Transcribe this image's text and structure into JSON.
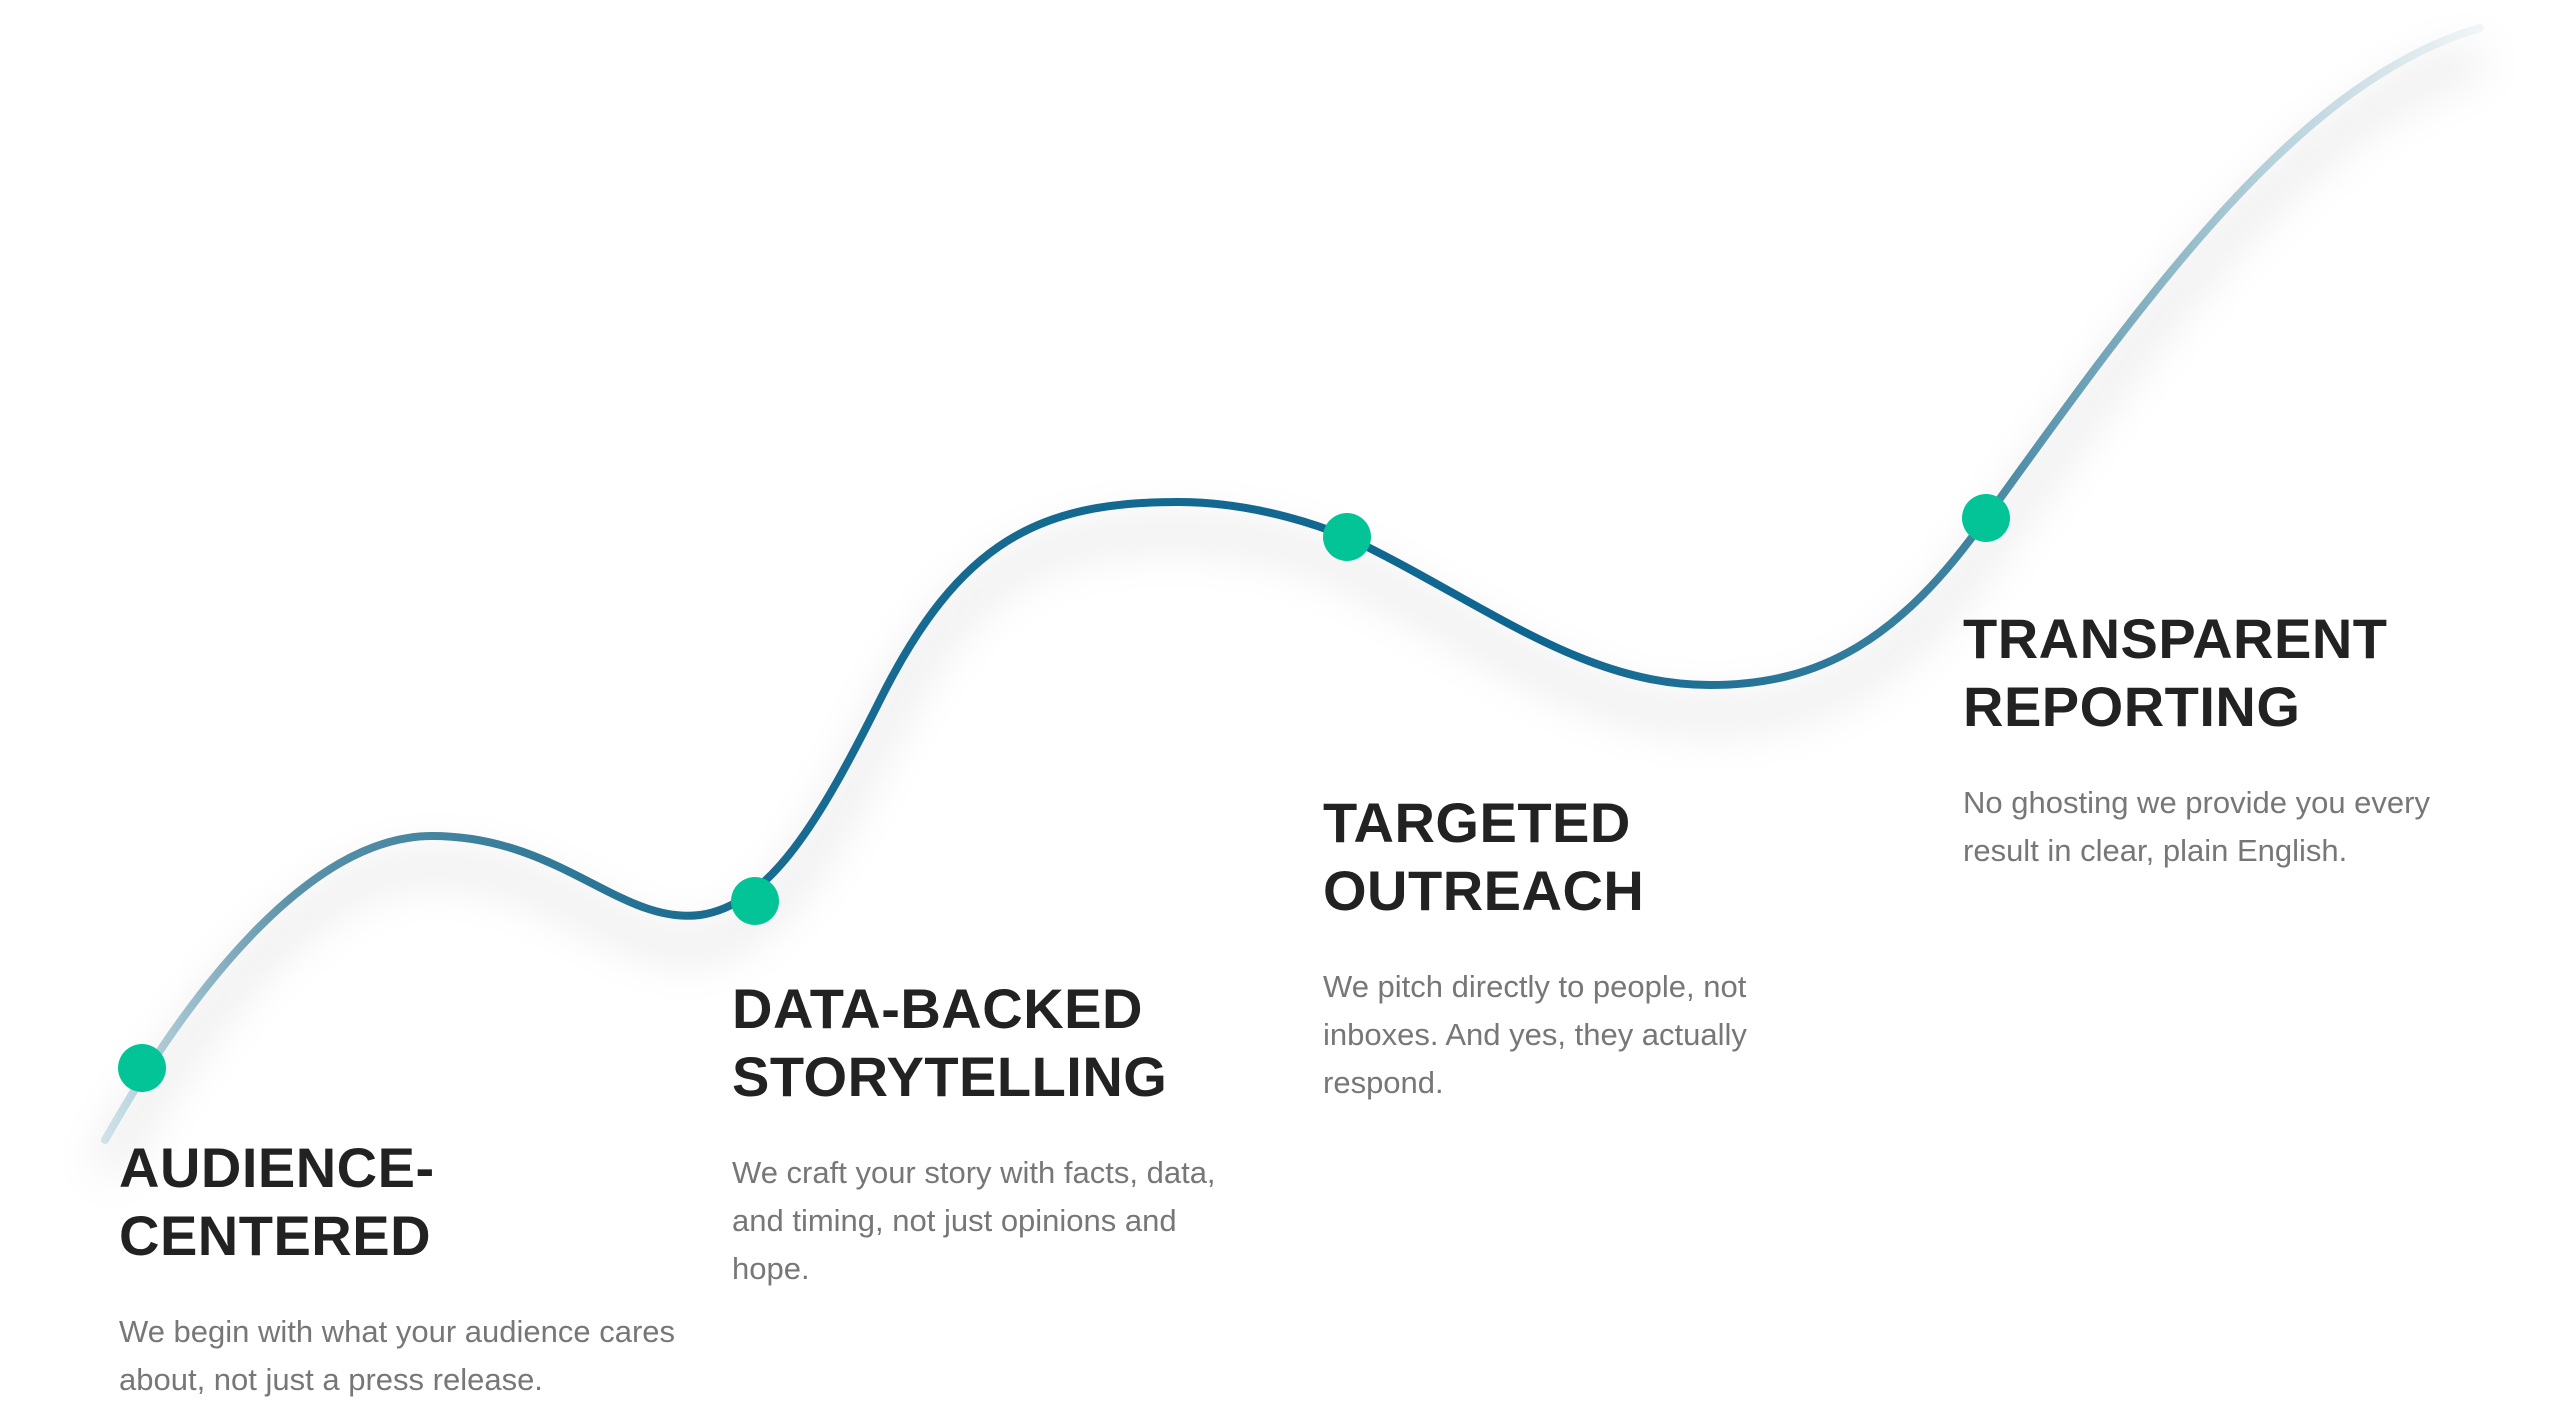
{
  "colors": {
    "curve_dark": "#0e6690",
    "curve_light": "#c5dde4",
    "dot": "#03c497",
    "title": "#222222",
    "body": "#777777"
  },
  "steps": [
    {
      "title_line1": "AUDIENCE-",
      "title_line2": "CENTERED",
      "text": "We begin with what your audience cares about, not just a press release."
    },
    {
      "title_line1": "DATA-BACKED",
      "title_line2": "STORYTELLING",
      "text": "We craft your story with facts, data, and timing, not just opinions and hope."
    },
    {
      "title_line1": "TARGETED",
      "title_line2": "OUTREACH",
      "text": "We pitch directly to people, not inboxes. And yes, they actually respond."
    },
    {
      "title_line1": "TRANSPARENT",
      "title_line2": "REPORTING",
      "text": "No ghosting we provide you every result in clear, plain English."
    }
  ]
}
